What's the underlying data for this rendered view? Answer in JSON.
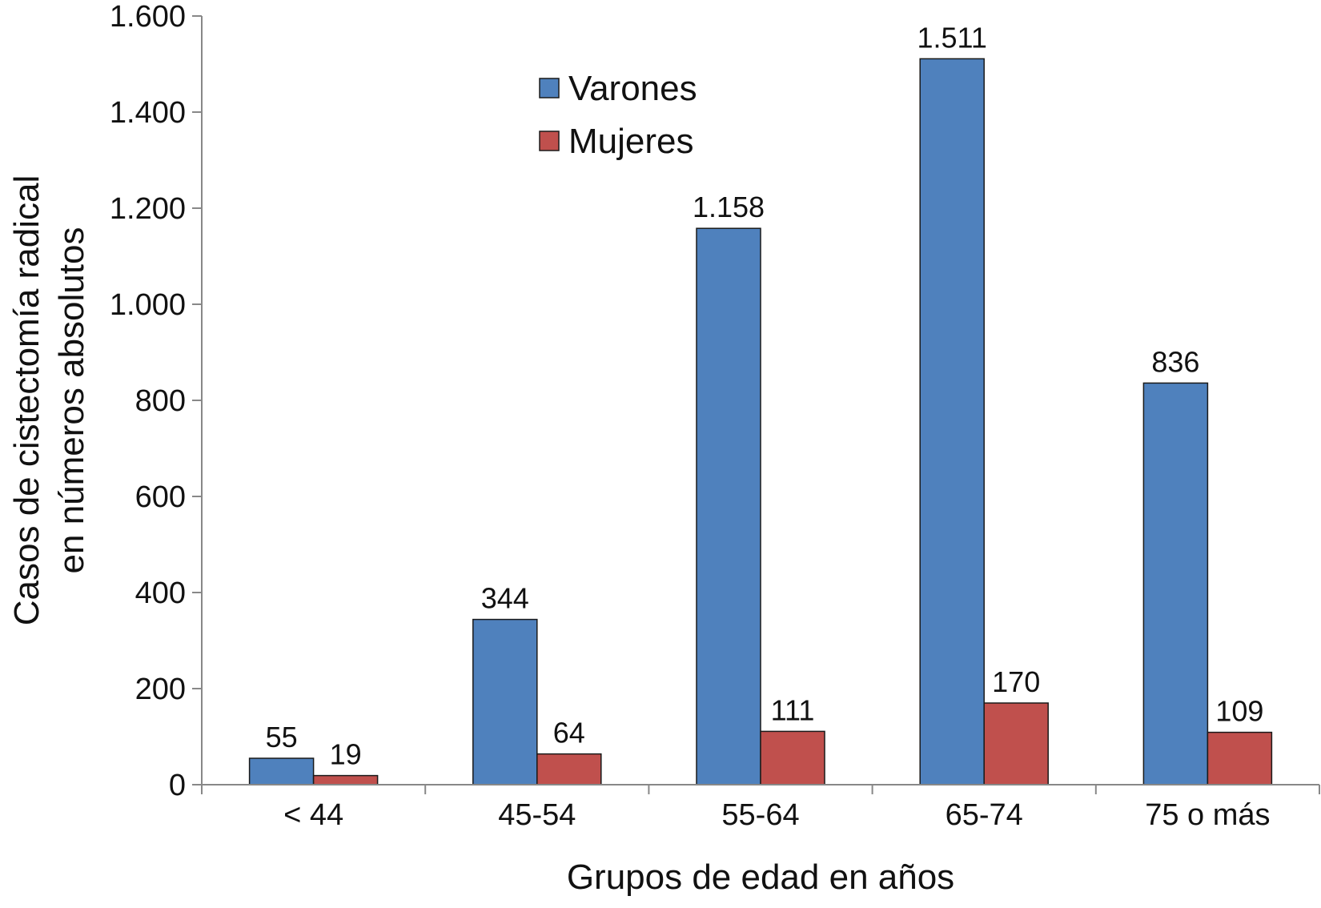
{
  "chart_data": {
    "type": "bar",
    "categories": [
      "< 44",
      "45-54",
      "55-64",
      "65-74",
      "75 o más"
    ],
    "series": [
      {
        "name": "Varones",
        "values": [
          55,
          344,
          1158,
          1511,
          836
        ],
        "labels": [
          "55",
          "344",
          "1.158",
          "1.511",
          "836"
        ],
        "color": "#4F81BD"
      },
      {
        "name": "Mujeres",
        "values": [
          19,
          64,
          111,
          170,
          109
        ],
        "labels": [
          "19",
          "64",
          "111",
          "170",
          "109"
        ],
        "color": "#C0504D"
      }
    ],
    "xlabel": "Grupos de edad en años",
    "ylabel_lines": [
      "Casos de cistectomía radical",
      "en números absolutos"
    ],
    "ylim": [
      0,
      1600
    ],
    "yticks": [
      0,
      200,
      400,
      600,
      800,
      1000,
      1200,
      1400,
      1600
    ],
    "ytick_labels": [
      "0",
      "200",
      "400",
      "600",
      "800",
      "1.000",
      "1.200",
      "1.400",
      "1.600"
    ],
    "legend_position": "top-center",
    "grid": false
  }
}
